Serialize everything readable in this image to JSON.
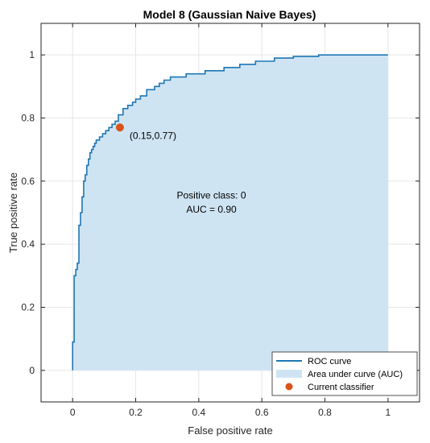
{
  "chart_data": {
    "type": "area",
    "title": "Model 8 (Gaussian Naive Bayes)",
    "xlabel": "False positive rate",
    "ylabel": "True positive rate",
    "xlim": [
      -0.1,
      1.1
    ],
    "ylim": [
      -0.1,
      1.1
    ],
    "xticks": [
      0,
      0.2,
      0.4,
      0.6,
      0.8,
      1
    ],
    "yticks": [
      0,
      0.2,
      0.4,
      0.6,
      0.8,
      1
    ],
    "xtick_labels": [
      "0",
      "0.2",
      "0.4",
      "0.6",
      "0.8",
      "1"
    ],
    "ytick_labels": [
      "0",
      "0.2",
      "0.4",
      "0.6",
      "0.8",
      "1"
    ],
    "grid": true,
    "roc_curve": {
      "x": [
        0,
        0,
        0.005,
        0.005,
        0.01,
        0.01,
        0.015,
        0.015,
        0.02,
        0.02,
        0.025,
        0.025,
        0.03,
        0.03,
        0.035,
        0.035,
        0.04,
        0.04,
        0.045,
        0.045,
        0.05,
        0.05,
        0.055,
        0.055,
        0.06,
        0.06,
        0.065,
        0.065,
        0.07,
        0.07,
        0.075,
        0.075,
        0.085,
        0.085,
        0.095,
        0.095,
        0.105,
        0.105,
        0.115,
        0.115,
        0.125,
        0.125,
        0.135,
        0.135,
        0.145,
        0.145,
        0.16,
        0.16,
        0.175,
        0.175,
        0.19,
        0.19,
        0.2,
        0.2,
        0.215,
        0.215,
        0.235,
        0.235,
        0.26,
        0.26,
        0.275,
        0.275,
        0.29,
        0.29,
        0.31,
        0.31,
        0.33,
        0.33,
        0.36,
        0.36,
        0.42,
        0.42,
        0.48,
        0.48,
        0.53,
        0.53,
        0.58,
        0.58,
        0.64,
        0.64,
        0.7,
        0.7,
        0.78,
        0.78,
        1
      ],
      "y": [
        0,
        0.09,
        0.09,
        0.3,
        0.3,
        0.32,
        0.32,
        0.34,
        0.34,
        0.46,
        0.46,
        0.5,
        0.5,
        0.55,
        0.55,
        0.6,
        0.6,
        0.62,
        0.62,
        0.65,
        0.65,
        0.67,
        0.67,
        0.69,
        0.69,
        0.7,
        0.7,
        0.71,
        0.71,
        0.72,
        0.72,
        0.73,
        0.73,
        0.74,
        0.74,
        0.75,
        0.75,
        0.76,
        0.76,
        0.77,
        0.77,
        0.78,
        0.78,
        0.79,
        0.79,
        0.81,
        0.81,
        0.83,
        0.83,
        0.84,
        0.84,
        0.85,
        0.85,
        0.86,
        0.86,
        0.87,
        0.87,
        0.89,
        0.89,
        0.9,
        0.9,
        0.91,
        0.91,
        0.92,
        0.92,
        0.93,
        0.93,
        0.93,
        0.93,
        0.94,
        0.94,
        0.95,
        0.95,
        0.96,
        0.96,
        0.97,
        0.97,
        0.98,
        0.98,
        0.99,
        0.99,
        0.995,
        0.995,
        1,
        1
      ]
    },
    "current_classifier": {
      "x": 0.15,
      "y": 0.77,
      "label": "(0.15,0.77)"
    },
    "annotation": {
      "line1": "Positive class: 0",
      "line2": "AUC = 0.90"
    },
    "legend": {
      "placement": "bottom-right",
      "entries": [
        "ROC curve",
        "Area under curve (AUC)",
        "Current classifier"
      ]
    },
    "colors": {
      "curve": "#1f77b4",
      "area": "#cfe4f3",
      "marker": "#d95319",
      "grid": "#e6e6e6",
      "axis": "#262626"
    }
  }
}
